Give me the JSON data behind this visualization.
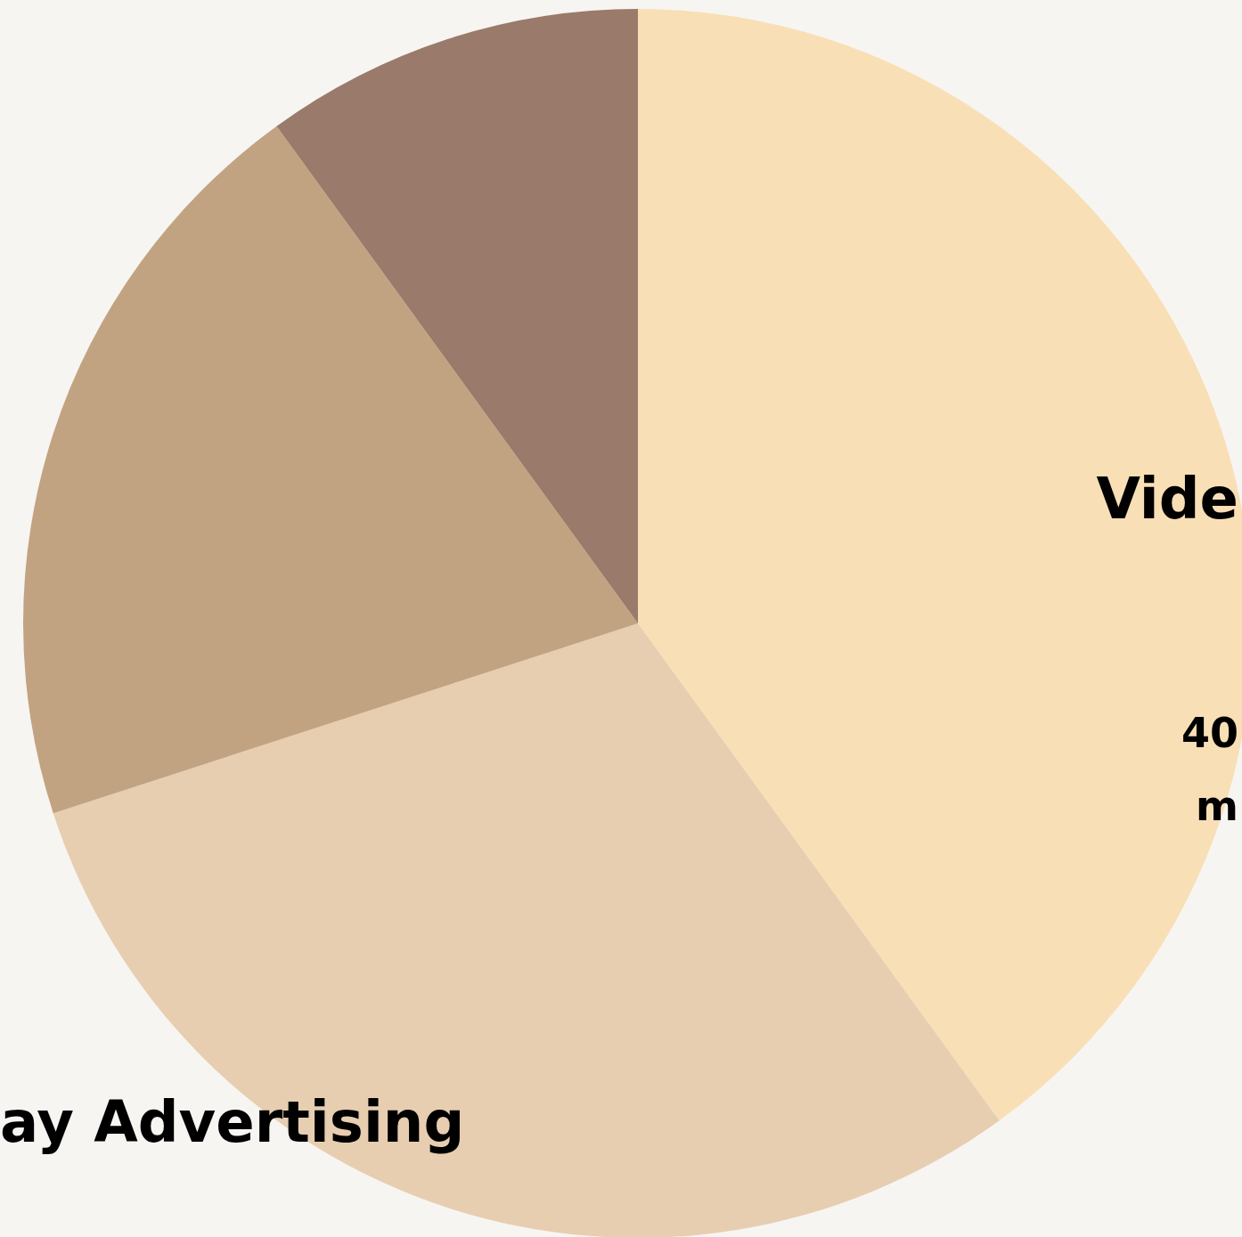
{
  "chart_data": {
    "type": "pie",
    "categories": [
      "Vide",
      "ay Advertising",
      null,
      null
    ],
    "values": [
      40,
      30,
      20,
      10
    ],
    "colors": [
      "#f9dfb6",
      "#e7ceb0",
      "#c2a381",
      "#9a7a6a"
    ],
    "annotations": [
      "40",
      "m"
    ],
    "legend": false
  }
}
